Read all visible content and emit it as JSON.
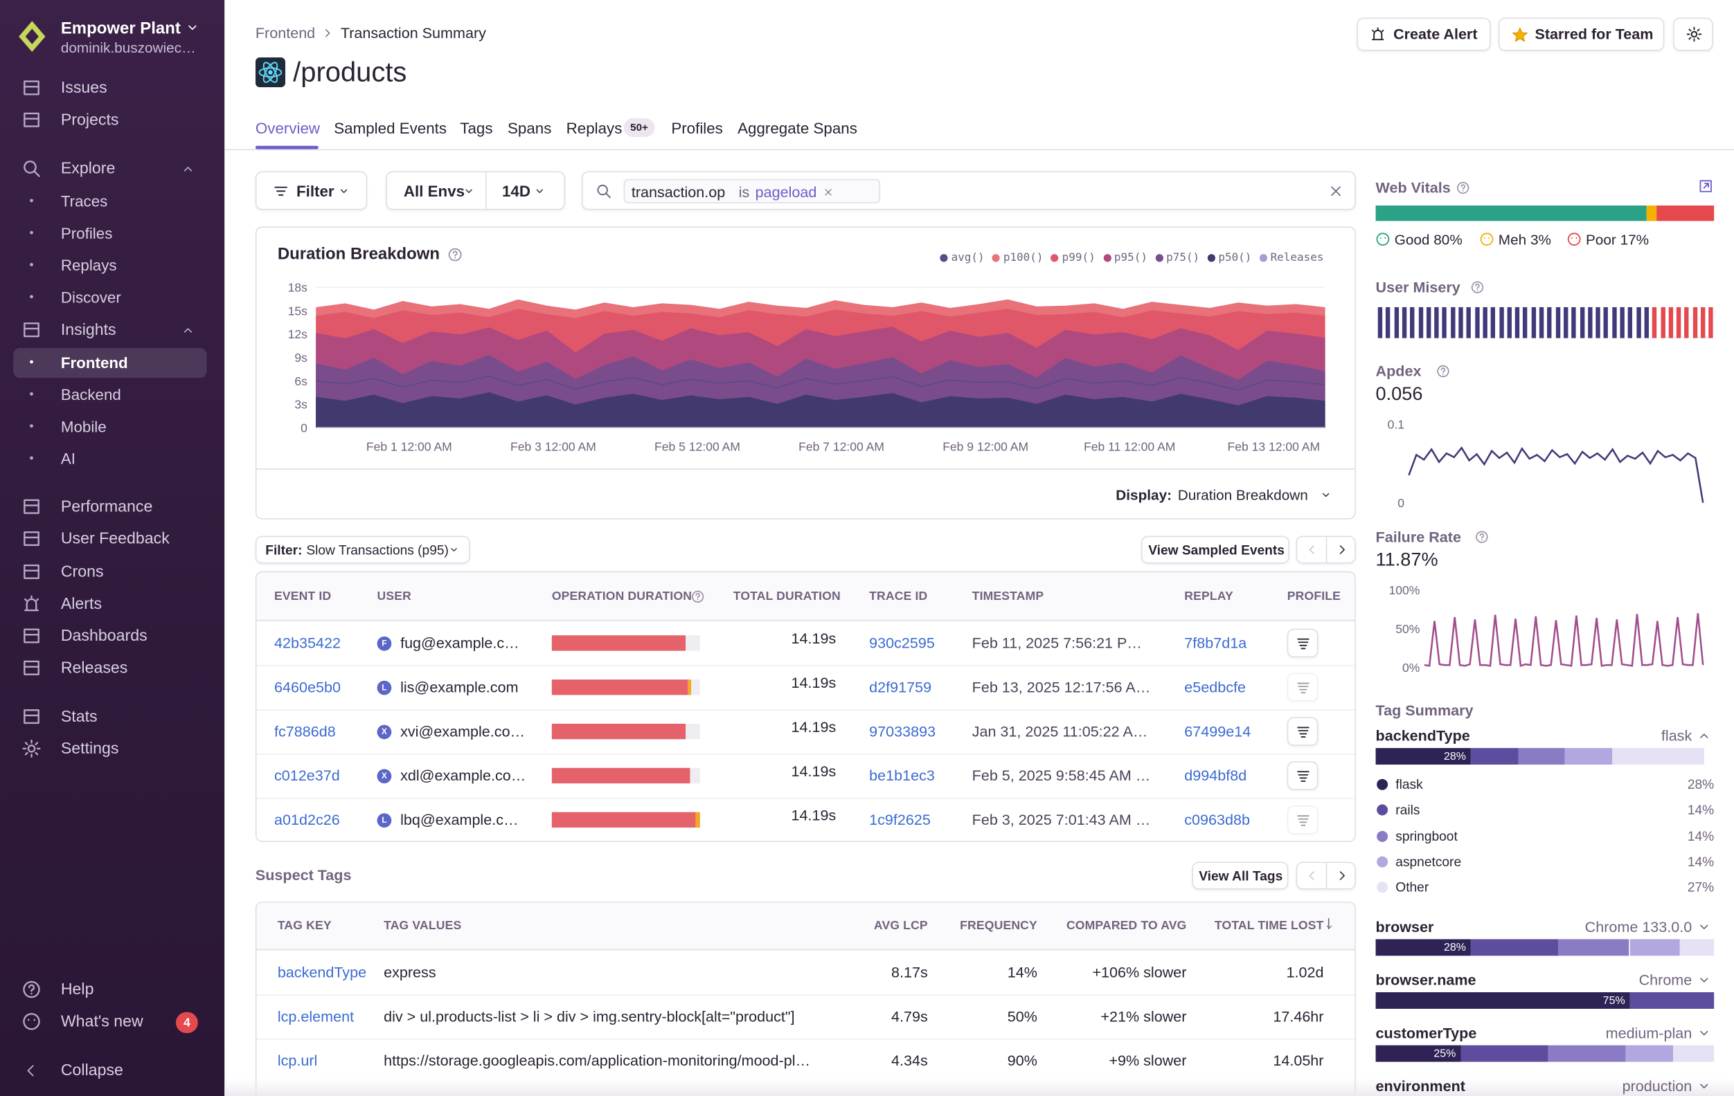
{
  "sidebar": {
    "org": "Empower Plant",
    "user": "dominik.buszowiec…",
    "nav": [
      {
        "label": "Issues"
      },
      {
        "label": "Projects"
      },
      {
        "label": "Explore",
        "children": [
          "Traces",
          "Profiles",
          "Replays",
          "Discover"
        ]
      },
      {
        "label": "Insights",
        "children": [
          "Frontend",
          "Backend",
          "Mobile",
          "AI"
        ],
        "active_child": 0
      },
      {
        "label": "Performance"
      },
      {
        "label": "User Feedback"
      },
      {
        "label": "Crons"
      },
      {
        "label": "Alerts"
      },
      {
        "label": "Dashboards"
      },
      {
        "label": "Releases"
      },
      {
        "label": "Stats"
      },
      {
        "label": "Settings"
      }
    ],
    "help": "Help",
    "whats_new": "What's new",
    "whats_new_count": 4,
    "collapse": "Collapse"
  },
  "header": {
    "breadcrumb": [
      "Frontend",
      "Transaction Summary"
    ],
    "title": "/products",
    "create_alert": "Create Alert",
    "starred": "Starred for Team",
    "tabs": [
      "Overview",
      "Sampled Events",
      "Tags",
      "Spans",
      "Replays",
      "Profiles",
      "Aggregate Spans"
    ],
    "active_tab": 0,
    "replays_badge": "50+"
  },
  "filters": {
    "filter": "Filter",
    "env": "All Envs",
    "period": "14D",
    "query_key": "transaction.op",
    "query_op": "is",
    "query_value": "pageload"
  },
  "duration_chart": {
    "type": "area",
    "title": "Duration Breakdown",
    "ylim": [
      0,
      18
    ],
    "yticks": [
      0,
      {
        "value": 3,
        "label": "3s"
      },
      {
        "value": 6,
        "label": "6s"
      },
      {
        "value": 9,
        "label": "9s"
      },
      {
        "value": 12,
        "label": "12s"
      },
      {
        "value": 15,
        "label": "15s"
      },
      {
        "value": 18,
        "label": "18s"
      }
    ],
    "x_labels": [
      "Feb 1 12:00 AM",
      "Feb 3 12:00 AM",
      "Feb 5 12:00 AM",
      "Feb 7 12:00 AM",
      "Feb 9 12:00 AM",
      "Feb 11 12:00 AM",
      "Feb 13 12:00 AM"
    ],
    "series": [
      {
        "name": "avg()",
        "color": "#5b4a87",
        "style": "line",
        "values": [
          6.0,
          5.6,
          6.3,
          5.2,
          6.1,
          5.8,
          6.6,
          5.4,
          6.2,
          4.9,
          5.9,
          6.4,
          5.5,
          6.2,
          5.7,
          6.0,
          5.1,
          6.3,
          5.6,
          6.0,
          6.5,
          5.3,
          6.1,
          5.8,
          5.9,
          5.0,
          6.3,
          5.7,
          6.0,
          5.4,
          6.4,
          5.7,
          4.8,
          6.1,
          5.9,
          5.5
        ]
      },
      {
        "name": "p100()",
        "color": "#e8717a",
        "style": "area",
        "values": [
          15.4,
          15.9,
          15.1,
          16.2,
          15.5,
          15.8,
          15.2,
          16.4,
          15.6,
          15.1,
          16.0,
          15.4,
          15.9,
          15.7,
          15.2,
          16.1,
          15.6,
          15.3,
          16.3,
          15.7,
          15.4,
          16.0,
          15.3,
          15.8,
          16.4,
          15.5,
          15.6,
          15.9,
          15.2,
          16.1,
          15.7,
          15.3,
          16.0,
          15.6,
          15.8,
          15.4
        ]
      },
      {
        "name": "p99()",
        "color": "#e0576a",
        "style": "area",
        "values": [
          14.3,
          14.8,
          14.0,
          15.0,
          14.4,
          14.7,
          14.1,
          15.2,
          14.5,
          14.0,
          14.9,
          14.3,
          14.8,
          14.6,
          14.1,
          15.0,
          14.5,
          14.2,
          15.1,
          14.6,
          14.3,
          14.9,
          14.2,
          14.7,
          15.2,
          14.4,
          14.5,
          14.8,
          14.1,
          15.0,
          14.6,
          14.2,
          14.9,
          14.5,
          14.7,
          14.3
        ]
      },
      {
        "name": "p95()",
        "color": "#b04a7e",
        "style": "area",
        "values": [
          12.1,
          11.4,
          12.6,
          10.8,
          12.3,
          11.9,
          12.8,
          11.2,
          12.4,
          9.6,
          12.0,
          12.5,
          11.1,
          12.7,
          11.8,
          12.2,
          10.4,
          12.6,
          11.7,
          12.3,
          12.9,
          11.0,
          12.4,
          11.6,
          12.1,
          10.2,
          12.5,
          11.9,
          12.2,
          11.3,
          12.7,
          11.8,
          9.9,
          12.4,
          12.0,
          11.5
        ]
      },
      {
        "name": "p75()",
        "color": "#7a4c8c",
        "style": "area",
        "values": [
          8.2,
          7.4,
          8.9,
          6.8,
          8.5,
          7.9,
          9.3,
          7.1,
          8.4,
          6.2,
          8.0,
          9.1,
          7.3,
          8.7,
          7.6,
          8.3,
          6.5,
          8.8,
          7.5,
          8.2,
          9.0,
          6.9,
          8.6,
          7.7,
          8.1,
          6.4,
          8.9,
          7.8,
          8.3,
          7.0,
          9.2,
          7.6,
          6.1,
          8.5,
          8.0,
          7.2
        ]
      },
      {
        "name": "p50()",
        "color": "#423a6e",
        "style": "area",
        "values": [
          3.9,
          3.4,
          4.2,
          3.1,
          4.0,
          3.7,
          4.5,
          3.3,
          4.1,
          2.9,
          3.8,
          4.3,
          3.5,
          4.1,
          3.6,
          3.9,
          3.0,
          4.2,
          3.5,
          3.9,
          4.4,
          3.2,
          4.0,
          3.7,
          3.8,
          3.0,
          4.2,
          3.6,
          3.9,
          3.3,
          4.3,
          3.6,
          2.8,
          4.0,
          3.8,
          3.4
        ]
      }
    ],
    "releases": "Releases",
    "releases_color": "#a79bd8",
    "display_label": "Display:",
    "display_value": "Duration Breakdown"
  },
  "events": {
    "filter_label": "Filter:",
    "filter_value": "Slow Transactions (p95)",
    "button": "View Sampled Events",
    "columns": [
      "EVENT ID",
      "USER",
      "OPERATION DURATION",
      "TOTAL DURATION",
      "TRACE ID",
      "TIMESTAMP",
      "REPLAY",
      "PROFILE"
    ],
    "rows": [
      {
        "id": "42b35422",
        "initial": "F",
        "user": "fug@example.c…",
        "bar": [
          90,
          0
        ],
        "duration": "14.19s",
        "trace": "930c2595",
        "timestamp": "Feb 11, 2025 7:56:21 P…",
        "replay": "7f8b7d1a",
        "profile": true
      },
      {
        "id": "6460e5b0",
        "initial": "L",
        "user": "lis@example.com",
        "bar": [
          92,
          2
        ],
        "duration": "14.19s",
        "trace": "d2f91759",
        "timestamp": "Feb 13, 2025 12:17:56 A…",
        "replay": "e5edbcfe",
        "profile": false
      },
      {
        "id": "fc7886d8",
        "initial": "X",
        "user": "xvi@example.co…",
        "bar": [
          90,
          0
        ],
        "duration": "14.19s",
        "trace": "97033893",
        "timestamp": "Jan 31, 2025 11:05:22 A…",
        "replay": "67499e14",
        "profile": true
      },
      {
        "id": "c012e37d",
        "initial": "X",
        "user": "xdl@example.co…",
        "bar": [
          93,
          0
        ],
        "duration": "14.19s",
        "trace": "be1b1ec3",
        "timestamp": "Feb 5, 2025 9:58:45 AM …",
        "replay": "d994bf8d",
        "profile": true
      },
      {
        "id": "a01d2c26",
        "initial": "L",
        "user": "lbq@example.c…",
        "bar": [
          97,
          3
        ],
        "duration": "14.19s",
        "trace": "1c9f2625",
        "timestamp": "Feb 3, 2025 7:01:43 AM …",
        "replay": "c0963d8b",
        "profile": false
      }
    ]
  },
  "suspect_tags": {
    "title": "Suspect Tags",
    "button": "View All Tags",
    "columns": [
      "TAG KEY",
      "TAG VALUES",
      "AVG LCP",
      "FREQUENCY",
      "COMPARED TO AVG",
      "TOTAL TIME LOST"
    ],
    "rows": [
      [
        "backendType",
        "express",
        "8.17s",
        "14%",
        "+106% slower",
        "1.02d"
      ],
      [
        "lcp.element",
        "div > ul.products-list > li > div > img.sentry-block[alt=\"product\"]",
        "4.79s",
        "50%",
        "+21% slower",
        "17.46hr"
      ],
      [
        "lcp.url",
        "https://storage.googleapis.com/application-monitoring/mood-pl…",
        "4.34s",
        "90%",
        "+9% slower",
        "14.05hr"
      ]
    ]
  },
  "web_vitals": {
    "title": "Web Vitals",
    "segments": [
      {
        "label": "Good 80%",
        "value": 80,
        "color": "#2ba185"
      },
      {
        "label": "Meh 3%",
        "value": 3,
        "color": "#f5b000"
      },
      {
        "label": "Poor 17%",
        "value": 17,
        "color": "#e5484d"
      }
    ]
  },
  "user_misery": {
    "title": "User Misery"
  },
  "apdex": {
    "type": "line",
    "title": "Apdex",
    "value": "0.056",
    "color": "#3f3a7a",
    "ylim": [
      0,
      0.1
    ],
    "yticks": [
      0.1,
      0
    ],
    "values": [
      0.035,
      0.061,
      0.055,
      0.068,
      0.052,
      0.063,
      0.058,
      0.07,
      0.054,
      0.062,
      0.049,
      0.066,
      0.057,
      0.064,
      0.051,
      0.069,
      0.056,
      0.061,
      0.053,
      0.067,
      0.058,
      0.062,
      0.05,
      0.065,
      0.057,
      0.063,
      0.055,
      0.068,
      0.052,
      0.06,
      0.056,
      0.064,
      0.05,
      0.066,
      0.058,
      0.061,
      0.054,
      0.063,
      0.057,
      0.0
    ]
  },
  "failure_rate": {
    "type": "line",
    "title": "Failure Rate",
    "value": "11.87%",
    "color": "#a34d8c",
    "ylim": [
      0,
      100
    ],
    "yticks": [
      {
        "value": 100,
        "label": "100%"
      },
      {
        "value": 50,
        "label": "50%"
      },
      {
        "value": 0,
        "label": "0%"
      }
    ],
    "values": [
      3,
      2,
      60,
      4,
      3,
      3,
      65,
      3,
      2,
      4,
      62,
      3,
      3,
      2,
      68,
      4,
      3,
      3,
      63,
      2,
      4,
      3,
      66,
      3,
      2,
      3,
      61,
      4,
      3,
      2,
      67,
      3,
      3,
      4,
      64,
      2,
      3,
      3,
      62,
      4,
      3,
      2,
      69,
      3,
      3,
      4,
      60,
      3,
      2,
      3,
      65,
      4,
      3,
      3,
      70,
      3
    ]
  },
  "tag_summary": {
    "title": "Tag Summary",
    "palette": [
      "#2f2356",
      "#5e4c9e",
      "#8a7bc4",
      "#b3a7df",
      "#e6e1f5"
    ],
    "tags": [
      {
        "key": "backendType",
        "top": "flask",
        "expanded": true,
        "segments": [
          {
            "name": "flask",
            "value": 28,
            "label": "28%"
          },
          {
            "name": "rails",
            "value": 14,
            "label": "14%"
          },
          {
            "name": "springboot",
            "value": 14,
            "label": "14%"
          },
          {
            "name": "aspnetcore",
            "value": 14,
            "label": "14%"
          },
          {
            "name": "Other",
            "value": 27,
            "label": "27%"
          }
        ]
      },
      {
        "key": "browser",
        "top": "Chrome 133.0.0",
        "segments": [
          {
            "value": 28,
            "label": "28%"
          },
          {
            "value": 26
          },
          {
            "value": 21
          },
          {
            "value": 15
          },
          {
            "value": 10
          }
        ]
      },
      {
        "key": "browser.name",
        "top": "Chrome",
        "segments": [
          {
            "value": 75,
            "label": "75%"
          },
          {
            "value": 25
          }
        ]
      },
      {
        "key": "customerType",
        "top": "medium-plan",
        "segments": [
          {
            "value": 25,
            "label": "25%"
          },
          {
            "value": 26
          },
          {
            "value": 23
          },
          {
            "value": 14
          },
          {
            "value": 12
          }
        ]
      },
      {
        "key": "environment",
        "top": "production",
        "segments": []
      }
    ]
  }
}
